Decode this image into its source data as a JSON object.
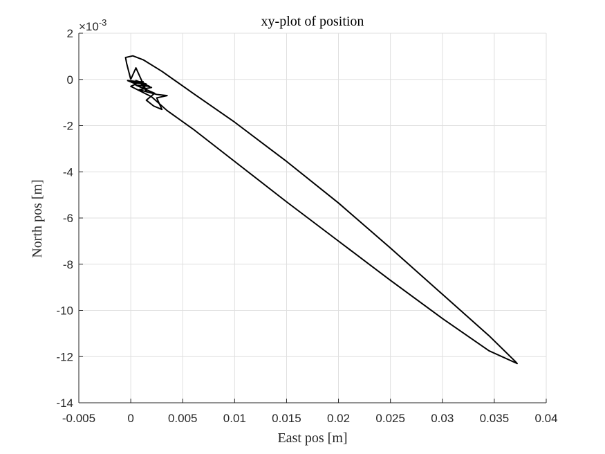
{
  "chart_data": {
    "type": "line",
    "title": "xy-plot of position",
    "xlabel": "East pos [m]",
    "ylabel": "North pos [m]",
    "y_exponent": {
      "base": "×10",
      "power": "-3"
    },
    "xlim": [
      -0.005,
      0.04
    ],
    "ylim": [
      -14,
      2
    ],
    "xticks": [
      -0.005,
      0,
      0.005,
      0.01,
      0.015,
      0.02,
      0.025,
      0.03,
      0.035,
      0.04
    ],
    "xtick_labels": [
      "-0.005",
      "0",
      "0.005",
      "0.01",
      "0.015",
      "0.02",
      "0.025",
      "0.03",
      "0.035",
      "0.04"
    ],
    "yticks": [
      -14,
      -12,
      -10,
      -8,
      -6,
      -4,
      -2,
      0,
      2
    ],
    "ytick_labels": [
      "-14",
      "-12",
      "-10",
      "-8",
      "-6",
      "-4",
      "-2",
      "0",
      "2"
    ],
    "grid": true,
    "line_color": "#000000",
    "series": [
      {
        "x": [
          0.0,
          0.0005,
          0.0015,
          0.001,
          0.002,
          0.0008,
          0.0025,
          0.0035,
          0.0025,
          0.003,
          0.0022,
          0.0015,
          0.0023,
          0.0005,
          0.0018,
          0.0005,
          0.0015,
          0.0003,
          0.0012,
          0.0002,
          0.0008,
          -0.0003,
          0.0005,
          0.0,
          0.002,
          0.0035,
          0.006,
          0.01,
          0.015,
          0.02,
          0.025,
          0.03,
          0.0345,
          0.0372,
          0.037,
          0.0345,
          0.03,
          0.025,
          0.02,
          0.015,
          0.01,
          0.006,
          0.003,
          0.0012,
          0.0002,
          -0.0005,
          -0.0004,
          0.0
        ],
        "y": [
          0.0,
          0.5,
          -0.5,
          -0.2,
          -0.35,
          -0.45,
          -0.65,
          -0.7,
          -0.8,
          -1.3,
          -1.15,
          -0.9,
          -0.6,
          -0.25,
          -0.3,
          -0.05,
          -0.2,
          -0.15,
          -0.1,
          -0.1,
          -0.1,
          -0.05,
          -0.2,
          -0.3,
          -0.75,
          -1.35,
          -2.15,
          -3.55,
          -5.3,
          -7.0,
          -8.7,
          -10.35,
          -11.75,
          -12.3,
          -12.2,
          -11.1,
          -9.3,
          -7.3,
          -5.35,
          -3.55,
          -1.85,
          -0.6,
          0.35,
          0.85,
          1.02,
          0.95,
          0.7,
          0.0
        ]
      }
    ]
  }
}
